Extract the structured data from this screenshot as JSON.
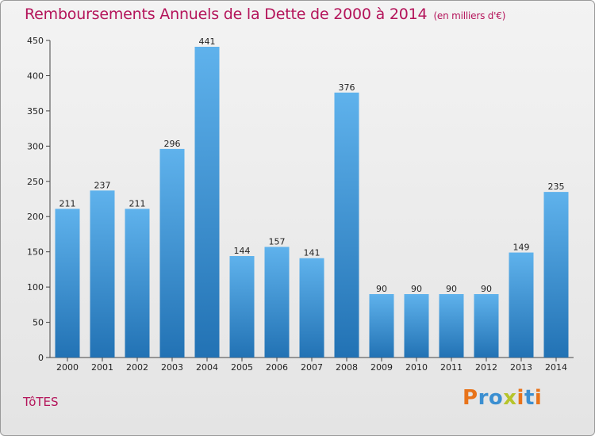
{
  "chart_data": {
    "type": "bar",
    "title": "Remboursements Annuels de la Dette de 2000 à 2014",
    "unit": "(en milliers d'€)",
    "categories": [
      "2000",
      "2001",
      "2002",
      "2003",
      "2004",
      "2005",
      "2006",
      "2007",
      "2008",
      "2009",
      "2010",
      "2011",
      "2012",
      "2013",
      "2014"
    ],
    "values": [
      211,
      237,
      211,
      296,
      441,
      144,
      157,
      141,
      376,
      90,
      90,
      90,
      90,
      149,
      235
    ],
    "value_labels": [
      "211",
      "237",
      "211",
      "296",
      "441",
      "144",
      "157",
      "141",
      "376",
      "90",
      "90",
      "90",
      "90",
      "149",
      "235"
    ],
    "ylim": [
      0,
      450
    ],
    "yticks": [
      0,
      50,
      100,
      150,
      200,
      250,
      300,
      350,
      400,
      450
    ],
    "grid": false,
    "bar_color": "#3d8fd6"
  },
  "commune": "TôTES",
  "logo": {
    "letters": [
      "P",
      "r",
      "o",
      "x",
      "i",
      "t",
      "i"
    ],
    "colors": [
      "#e8731a",
      "#3b8fd1",
      "#3b8fd1",
      "#b6c42b",
      "#e8731a",
      "#3b8fd1",
      "#e8731a"
    ]
  }
}
